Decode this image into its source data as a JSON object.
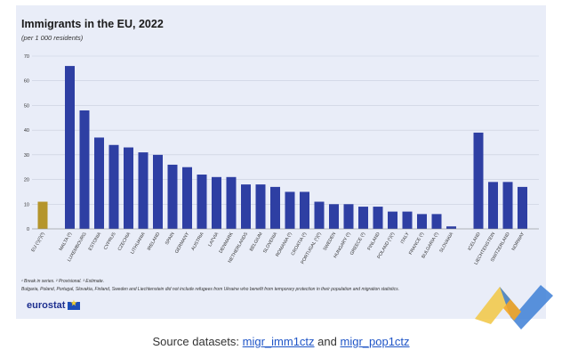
{
  "header": {
    "title": "Immigrants in the EU, 2022",
    "subtitle": "(per 1 000 residents)"
  },
  "notes": {
    "line1": "¹ Break in series. ² Provisional. ³ Estimate.",
    "line2": "Bulgaria, Poland, Portugal, Slovakia, Finland, Sweden and Liechtenstein did not include refugees from Ukraine who benefit from temporary protection in their population and migration statistics."
  },
  "logo": {
    "text": "eurostat"
  },
  "source": {
    "prefix": "Source datasets:",
    "link1": "migr_imm1ctz",
    "middle": "and",
    "link2": "migr_pop1ctz"
  },
  "colors": {
    "eu_bar": "#b5952c",
    "country_bar": "#2e3fa3",
    "background": "#e9edf8",
    "grid": "#c9cfdd"
  },
  "chart_data": {
    "type": "bar",
    "title": "Immigrants in the EU, 2022",
    "subtitle": "(per 1 000 residents)",
    "ylim": [
      0,
      70
    ],
    "yticks": [
      0,
      10,
      20,
      30,
      40,
      50,
      60,
      70
    ],
    "grid": true,
    "categories": [
      "EU (¹)(²)(³)",
      "MALTA (²)",
      "LUXEMBOURG",
      "ESTONIA",
      "CYPRUS",
      "CZECHIA",
      "LITHUANIA",
      "IRELAND",
      "SPAIN",
      "GERMANY",
      "AUSTRIA",
      "LATVIA",
      "DENMARK",
      "NETHERLANDS",
      "BELGIUM",
      "SLOVENIA",
      "ROMANIA (²)",
      "CROATIA (²)",
      "PORTUGAL (¹)(²)",
      "SWEDEN",
      "HUNGARY (²)",
      "GREECE (²)",
      "FINLAND",
      "POLAND (¹)(²)",
      "ITALY",
      "FRANCE (²)",
      "BULGARIA (²)",
      "SLOVAKIA",
      "ICELAND",
      "LIECHTENSTEIN",
      "SWITZERLAND",
      "NORWAY"
    ],
    "values": [
      11,
      66,
      48,
      37,
      34,
      33,
      31,
      30,
      26,
      25,
      22,
      21,
      21,
      18,
      18,
      17,
      15,
      15,
      11,
      10,
      10,
      9,
      9,
      7,
      7,
      6,
      6,
      1,
      39,
      19,
      19,
      17
    ],
    "groups": [
      "eu",
      "country",
      "country",
      "country",
      "country",
      "country",
      "country",
      "country",
      "country",
      "country",
      "country",
      "country",
      "country",
      "country",
      "country",
      "country",
      "country",
      "country",
      "country",
      "country",
      "country",
      "country",
      "country",
      "country",
      "country",
      "country",
      "country",
      "country",
      "efta",
      "efta",
      "efta",
      "efta"
    ]
  }
}
